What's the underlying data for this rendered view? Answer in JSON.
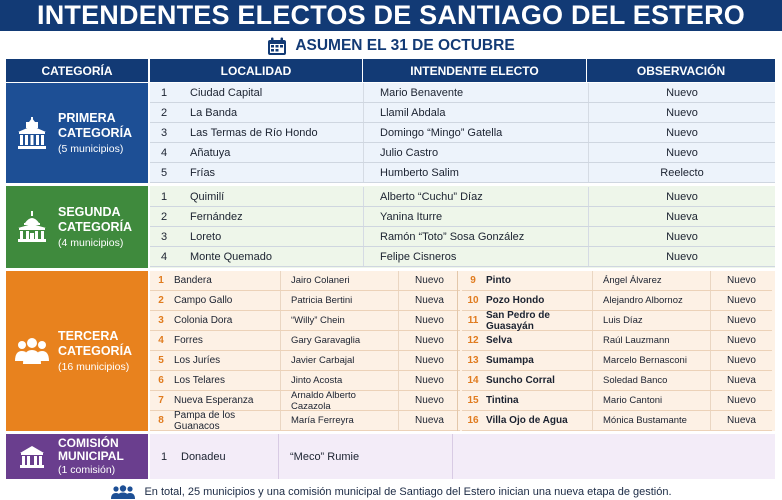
{
  "header": {
    "title": "INTENDENTES ELECTOS DE SANTIAGO DEL ESTERO",
    "subtitle": "ASUMEN EL 31 DE OCTUBRE",
    "calendar_icon": "calendar-icon"
  },
  "columns": {
    "categoria": "CATEGORÍA",
    "localidad": "LOCALIDAD",
    "intendente": "INTENDENTE ELECTO",
    "observacion": "OBSERVACIÓN"
  },
  "colors": {
    "navy": "#123a75",
    "primera": "#1d4f95",
    "segunda": "#3f8a3d",
    "tercera": "#e8821e",
    "comision": "#6a3e8e"
  },
  "primera": {
    "name": "PRIMERA CATEGORÍA",
    "name_1": "PRIMERA",
    "name_2": "CATEGORÍA",
    "count": "(5 municipios)",
    "icon": "government-building-icon",
    "rows": [
      {
        "n": "1",
        "loc": "Ciudad Capital",
        "int": "Mario Benavente",
        "obs": "Nuevo"
      },
      {
        "n": "2",
        "loc": "La Banda",
        "int": "Llamil Abdala",
        "obs": "Nuevo"
      },
      {
        "n": "3",
        "loc": "Las Termas de Río Hondo",
        "int": "Domingo “Mingo” Gatella",
        "obs": "Nuevo"
      },
      {
        "n": "4",
        "loc": "Añatuya",
        "int": "Julio Castro",
        "obs": "Nuevo"
      },
      {
        "n": "5",
        "loc": "Frías",
        "int": "Humberto Salim",
        "obs": "Reelecto"
      }
    ]
  },
  "segunda": {
    "name_1": "SEGUNDA",
    "name_2": "CATEGORÍA",
    "count": "(4 municipios)",
    "icon": "capitol-building-icon",
    "rows": [
      {
        "n": "1",
        "loc": "Quimilí",
        "int": "Alberto “Cuchu” Díaz",
        "obs": "Nuevo"
      },
      {
        "n": "2",
        "loc": "Fernández",
        "int": "Yanina Iturre",
        "obs": "Nueva"
      },
      {
        "n": "3",
        "loc": "Loreto",
        "int": "Ramón “Toto” Sosa González",
        "obs": "Nuevo"
      },
      {
        "n": "4",
        "loc": "Monte Quemado",
        "int": "Felipe Cisneros",
        "obs": "Nuevo"
      }
    ]
  },
  "tercera": {
    "name_1": "TERCERA",
    "name_2": "CATEGORÍA",
    "count": "(16 municipios)",
    "icon": "people-group-icon",
    "left": [
      {
        "n": "1",
        "loc": "Bandera",
        "int": "Jairo Colaneri",
        "obs": "Nuevo"
      },
      {
        "n": "2",
        "loc": "Campo Gallo",
        "int": "Patricia Bertini",
        "obs": "Nueva"
      },
      {
        "n": "3",
        "loc": "Colonia Dora",
        "int": "“Willy” Chein",
        "obs": "Nuevo"
      },
      {
        "n": "4",
        "loc": "Forres",
        "int": "Gary Garavaglia",
        "obs": "Nuevo"
      },
      {
        "n": "5",
        "loc": "Los Juríes",
        "int": "Javier Carbajal",
        "obs": "Nuevo"
      },
      {
        "n": "6",
        "loc": "Los Telares",
        "int": "Jinto Acosta",
        "obs": "Nuevo"
      },
      {
        "n": "7",
        "loc": "Nueva Esperanza",
        "int": "Arnaldo Alberto Cazazola",
        "obs": "Nuevo"
      },
      {
        "n": "8",
        "loc": "Pampa de los Guanacos",
        "int": "María Ferreyra",
        "obs": "Nueva"
      }
    ],
    "right": [
      {
        "n": "9",
        "loc": "Pinto",
        "int": "Ángel Álvarez",
        "obs": "Nuevo"
      },
      {
        "n": "10",
        "loc": "Pozo Hondo",
        "int": "Alejandro Albornoz",
        "obs": "Nuevo"
      },
      {
        "n": "11",
        "loc": "San Pedro de Guasayán",
        "int": "Luis Díaz",
        "obs": "Nuevo"
      },
      {
        "n": "12",
        "loc": "Selva",
        "int": "Raúl Lauzmann",
        "obs": "Nuevo"
      },
      {
        "n": "13",
        "loc": "Sumampa",
        "int": "Marcelo Bernasconi",
        "obs": "Nuevo"
      },
      {
        "n": "14",
        "loc": "Suncho Corral",
        "int": "Soledad Banco",
        "obs": "Nueva"
      },
      {
        "n": "15",
        "loc": "Tintina",
        "int": "Mario Cantoni",
        "obs": "Nuevo"
      },
      {
        "n": "16",
        "loc": "Villa Ojo de Agua",
        "int": "Mónica Bustamante",
        "obs": "Nueva"
      }
    ]
  },
  "comision": {
    "name_1": "COMISIÓN",
    "name_2": "MUNICIPAL",
    "count": "(1 comisión)",
    "icon": "town-hall-icon",
    "row": {
      "n": "1",
      "loc": "Donadeu",
      "int": "“Meco” Rumie"
    }
  },
  "footer": {
    "text": "En total, 25 municipios y una comisión municipal de Santiago del Estero inician una nueva etapa de gestión.",
    "icon": "people-icon"
  }
}
